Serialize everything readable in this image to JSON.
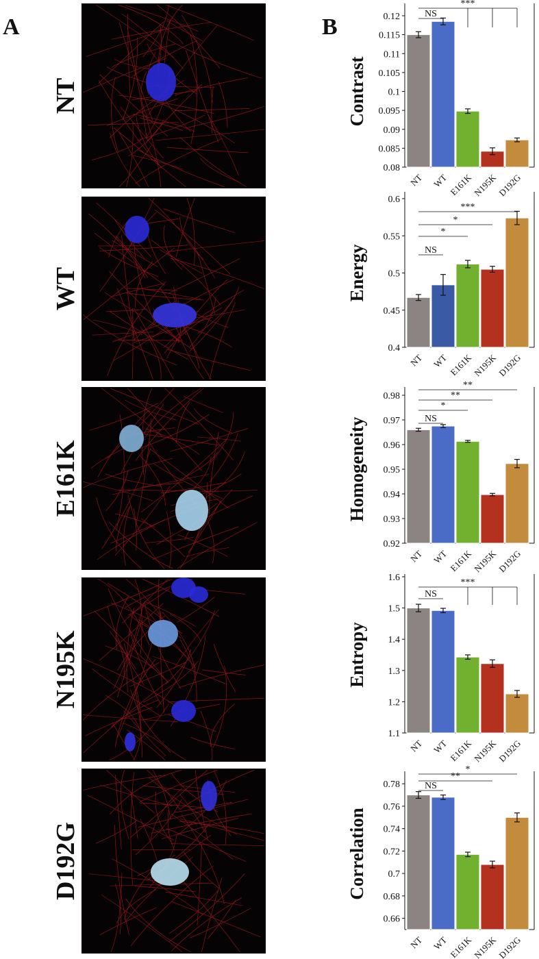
{
  "panel_labels": [
    "A",
    "B"
  ],
  "image_labels": [
    "NT",
    "WT",
    "E161K",
    "N195K",
    "D192G"
  ],
  "chart_data": [
    {
      "type": "bar",
      "ylabel": "Contrast",
      "categories": [
        "NT",
        "WT",
        "E161K",
        "N195K",
        "D192G"
      ],
      "values": [
        0.115,
        0.1185,
        0.0948,
        0.0842,
        0.0872
      ],
      "errors": [
        0.0008,
        0.0009,
        0.0006,
        0.0009,
        0.0005
      ],
      "colors": [
        "#8b8482",
        "#4a6cc6",
        "#72b02f",
        "#b4311f",
        "#c28b3e"
      ],
      "ylim": [
        0.08,
        0.12
      ],
      "yticks": [
        0.08,
        0.085,
        0.09,
        0.095,
        0.1,
        0.105,
        0.11,
        0.115,
        0.12
      ],
      "annotations": [
        {
          "text": "NS",
          "from": 0,
          "to": [
            1
          ]
        },
        {
          "text": "***",
          "from": 0,
          "to": [
            2,
            3,
            4
          ]
        }
      ]
    },
    {
      "type": "bar",
      "ylabel": "Energy",
      "categories": [
        "NT",
        "WT",
        "E161K",
        "N195K",
        "D192G"
      ],
      "values": [
        0.467,
        0.484,
        0.512,
        0.505,
        0.574
      ],
      "errors": [
        0.004,
        0.014,
        0.005,
        0.004,
        0.009
      ],
      "colors": [
        "#8b8482",
        "#3b5aa6",
        "#72b02f",
        "#b4311f",
        "#c28b3e"
      ],
      "ylim": [
        0.4,
        0.6
      ],
      "yticks": [
        0.4,
        0.45,
        0.5,
        0.55,
        0.6
      ],
      "annotations": [
        {
          "text": "NS",
          "from": 0,
          "to": [
            1
          ]
        },
        {
          "text": "*",
          "from": 0,
          "to": [
            2
          ]
        },
        {
          "text": "*",
          "from": 0,
          "to": [
            3
          ]
        },
        {
          "text": "***",
          "from": 0,
          "to": [
            4
          ]
        }
      ]
    },
    {
      "type": "bar",
      "ylabel": "Homogeneity",
      "categories": [
        "NT",
        "WT",
        "E161K",
        "N195K",
        "D192G"
      ],
      "values": [
        0.966,
        0.9675,
        0.9613,
        0.9397,
        0.9523
      ],
      "errors": [
        0.0006,
        0.0006,
        0.0004,
        0.0005,
        0.0017
      ],
      "colors": [
        "#8b8482",
        "#4a6cc6",
        "#72b02f",
        "#b4311f",
        "#c28b3e"
      ],
      "ylim": [
        0.92,
        0.98
      ],
      "yticks": [
        0.92,
        0.93,
        0.94,
        0.95,
        0.96,
        0.97,
        0.98
      ],
      "annotations": [
        {
          "text": "NS",
          "from": 0,
          "to": [
            1
          ]
        },
        {
          "text": "*",
          "from": 0,
          "to": [
            2
          ]
        },
        {
          "text": "**",
          "from": 0,
          "to": [
            3
          ]
        },
        {
          "text": "**",
          "from": 0,
          "to": [
            4
          ]
        }
      ]
    },
    {
      "type": "bar",
      "ylabel": "Entropy",
      "categories": [
        "NT",
        "WT",
        "E161K",
        "N195K",
        "D192G"
      ],
      "values": [
        1.5,
        1.492,
        1.343,
        1.322,
        1.225
      ],
      "errors": [
        0.012,
        0.007,
        0.007,
        0.012,
        0.011
      ],
      "colors": [
        "#8b8482",
        "#4a6cc6",
        "#72b02f",
        "#b4311f",
        "#c28b3e"
      ],
      "ylim": [
        1.1,
        1.6
      ],
      "yticks": [
        1.1,
        1.2,
        1.3,
        1.4,
        1.5,
        1.6
      ],
      "annotations": [
        {
          "text": "NS",
          "from": 0,
          "to": [
            1
          ]
        },
        {
          "text": "***",
          "from": 0,
          "to": [
            2,
            3,
            4
          ]
        }
      ]
    },
    {
      "type": "bar",
      "ylabel": "Correlation",
      "categories": [
        "NT",
        "WT",
        "E161K",
        "N195K",
        "D192G"
      ],
      "values": [
        0.77,
        0.768,
        0.717,
        0.708,
        0.75
      ],
      "errors": [
        0.003,
        0.002,
        0.002,
        0.003,
        0.004
      ],
      "colors": [
        "#8b8482",
        "#4a6cc6",
        "#72b02f",
        "#b4311f",
        "#c28b3e"
      ],
      "ylim": [
        0.65,
        0.785
      ],
      "yticks": [
        0.66,
        0.68,
        0.7,
        0.72,
        0.74,
        0.76,
        0.78
      ],
      "annotations": [
        {
          "text": "NS",
          "from": 0,
          "to": [
            1
          ]
        },
        {
          "text": "**",
          "from": 0,
          "to": [
            3
          ]
        },
        {
          "text": "*",
          "from": 0,
          "to": [
            4
          ]
        }
      ]
    }
  ]
}
